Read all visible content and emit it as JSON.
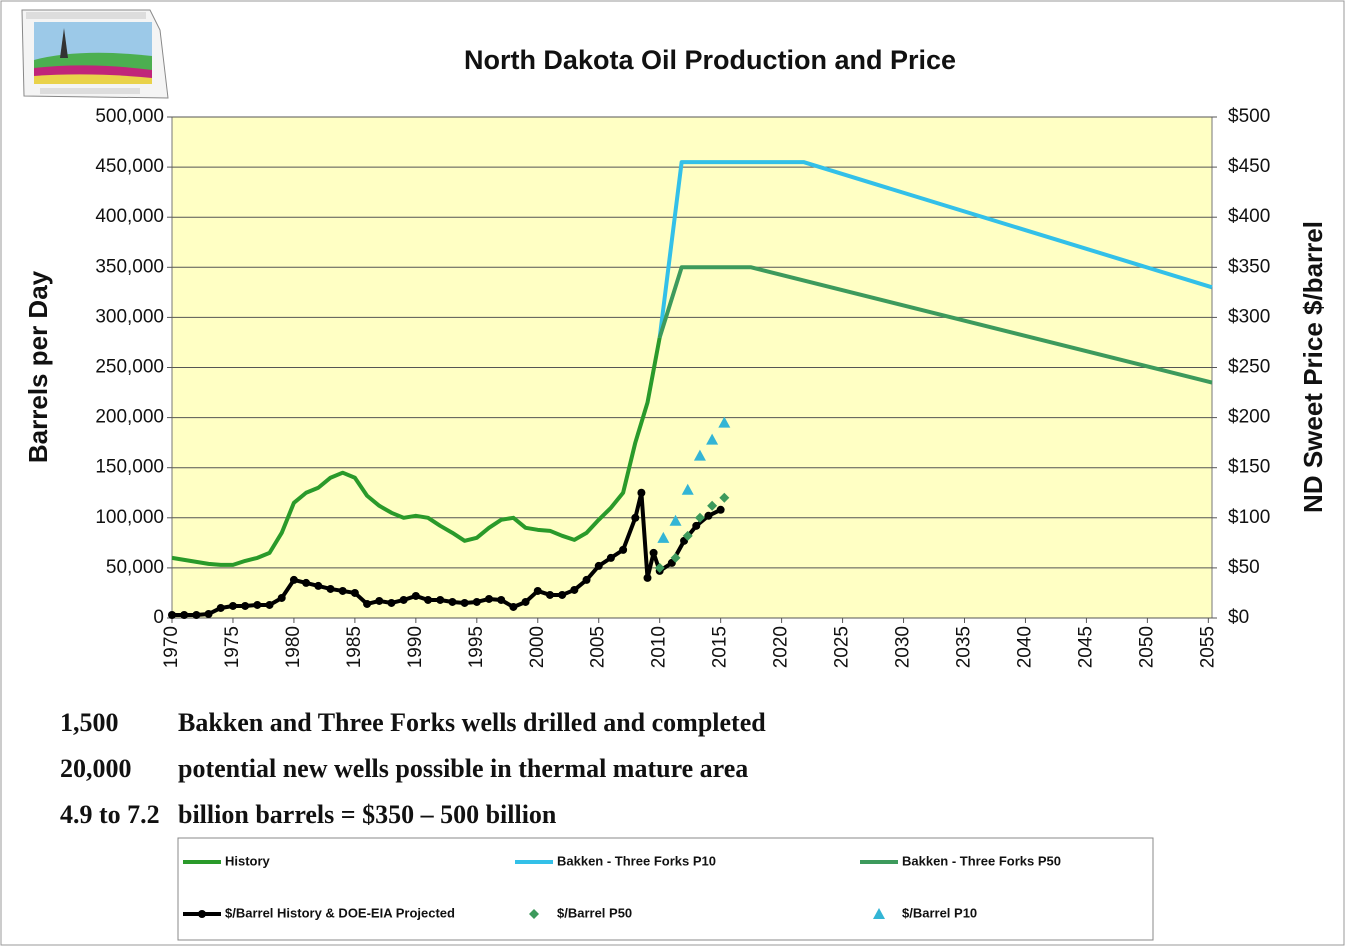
{
  "chart_data": {
    "type": "line",
    "title": "North Dakota Oil Production and Price",
    "ylabel": "Barrels per Day",
    "y2label": "ND Sweet Price $/barrel",
    "xlim": [
      1970,
      2055.3
    ],
    "xticks": [
      1970,
      1975,
      1980,
      1985,
      1990,
      1995,
      2000,
      2005,
      2010,
      2015,
      2020,
      2025,
      2030,
      2035,
      2040,
      2045,
      2050,
      2055
    ],
    "ylim": [
      0,
      500000
    ],
    "yticks": [
      0,
      {
        "value": 50000,
        "label": "50,000"
      },
      {
        "value": 100000,
        "label": "100,000"
      },
      {
        "value": 150000,
        "label": "150,000"
      },
      {
        "value": 200000,
        "label": "200,000"
      },
      {
        "value": 250000,
        "label": "250,000"
      },
      {
        "value": 300000,
        "label": "300,000"
      },
      {
        "value": 350000,
        "label": "350,000"
      },
      {
        "value": 400000,
        "label": "400,000"
      },
      {
        "value": 450000,
        "label": "450,000"
      },
      {
        "value": 500000,
        "label": "500,000"
      }
    ],
    "y2lim": [
      0,
      500
    ],
    "y2ticks": [
      {
        "value": 0,
        "label": "$0"
      },
      {
        "value": 50,
        "label": "$50"
      },
      {
        "value": 100,
        "label": "$100"
      },
      {
        "value": 150,
        "label": "$150"
      },
      {
        "value": 200,
        "label": "$200"
      },
      {
        "value": 250,
        "label": "$250"
      },
      {
        "value": 300,
        "label": "$300"
      },
      {
        "value": 350,
        "label": "$350"
      },
      {
        "value": 400,
        "label": "$400"
      },
      {
        "value": 450,
        "label": "$450"
      },
      {
        "value": 500,
        "label": "$500"
      }
    ],
    "grid": true,
    "plot_background": "#ffffc4",
    "series": [
      {
        "name": "History",
        "color": "#2a9a2a",
        "mode": "line",
        "x": [
          1970,
          1971,
          1972,
          1973,
          1974,
          1975,
          1976,
          1977,
          1978,
          1979,
          1980,
          1981,
          1982,
          1983,
          1984,
          1985,
          1986,
          1987,
          1988,
          1989,
          1990,
          1991,
          1992,
          1993,
          1994,
          1995,
          1996,
          1997,
          1998,
          1999,
          2000,
          2001,
          2002,
          2003,
          2004,
          2005,
          2006,
          2007,
          2008,
          2009,
          2010
        ],
        "values": [
          60000,
          58000,
          56000,
          54000,
          53000,
          53000,
          57000,
          60000,
          65000,
          85000,
          115000,
          125000,
          130000,
          140000,
          145000,
          140000,
          122000,
          112000,
          105000,
          100000,
          102000,
          100000,
          92000,
          85000,
          77000,
          80000,
          90000,
          98000,
          100000,
          90000,
          88000,
          87000,
          82000,
          78000,
          85000,
          98000,
          110000,
          125000,
          175000,
          215000,
          280000
        ]
      },
      {
        "name": "Bakken - Three Forks P10",
        "color": "#33c0e8",
        "mode": "line",
        "x": [
          2010,
          2011.8,
          2021.8,
          2055.3
        ],
        "values": [
          280000,
          455000,
          455000,
          330000
        ]
      },
      {
        "name": "Bakken - Three Forks P50",
        "color": "#3d9a5c",
        "mode": "line",
        "x": [
          2010,
          2011.8,
          2017.5,
          2055.3
        ],
        "values": [
          280000,
          350000,
          350000,
          235000
        ]
      },
      {
        "name": "$/Barrel History & DOE-EIA Projected",
        "color": "#000000",
        "mode": "line+markers",
        "axis": "y2",
        "x": [
          1970,
          1971,
          1972,
          1973,
          1974,
          1975,
          1976,
          1977,
          1978,
          1979,
          1980,
          1981,
          1982,
          1983,
          1984,
          1985,
          1986,
          1987,
          1988,
          1989,
          1990,
          1991,
          1992,
          1993,
          1994,
          1995,
          1996,
          1997,
          1998,
          1999,
          2000,
          2001,
          2002,
          2003,
          2004,
          2005,
          2006,
          2007,
          2008,
          2008.5,
          2009,
          2009.5,
          2010,
          2011,
          2012,
          2013,
          2014,
          2015
        ],
        "values": [
          3,
          3,
          3,
          4,
          10,
          12,
          12,
          13,
          13,
          20,
          38,
          35,
          32,
          29,
          27,
          25,
          14,
          17,
          15,
          18,
          22,
          18,
          18,
          16,
          15,
          16,
          19,
          18,
          11,
          16,
          27,
          23,
          23,
          28,
          38,
          52,
          60,
          68,
          100,
          125,
          40,
          65,
          47,
          55,
          77,
          92,
          102,
          108
        ]
      },
      {
        "name": "$/Barrel P50",
        "color": "#3d9a5c",
        "mode": "markers",
        "marker": "diamond",
        "axis": "y2",
        "x": [
          2010,
          2011.3,
          2012.3,
          2013.3,
          2014.3,
          2015.3
        ],
        "values": [
          50,
          60,
          82,
          100,
          112,
          120
        ]
      },
      {
        "name": "$/Barrel P10",
        "color": "#33b5d5",
        "mode": "markers",
        "marker": "triangle",
        "axis": "y2",
        "x": [
          2010.3,
          2011.3,
          2012.3,
          2013.3,
          2014.3,
          2015.3
        ],
        "values": [
          80,
          97,
          128,
          162,
          178,
          195
        ]
      }
    ],
    "notes": [
      {
        "number": "1,500",
        "text": "Bakken and Three Forks wells drilled and completed"
      },
      {
        "number": "20,000",
        "text": "potential new wells possible in thermal mature area"
      },
      {
        "number": "4.9 to 7.2",
        "text": "billion barrels = $350 – 500 billion"
      }
    ]
  }
}
